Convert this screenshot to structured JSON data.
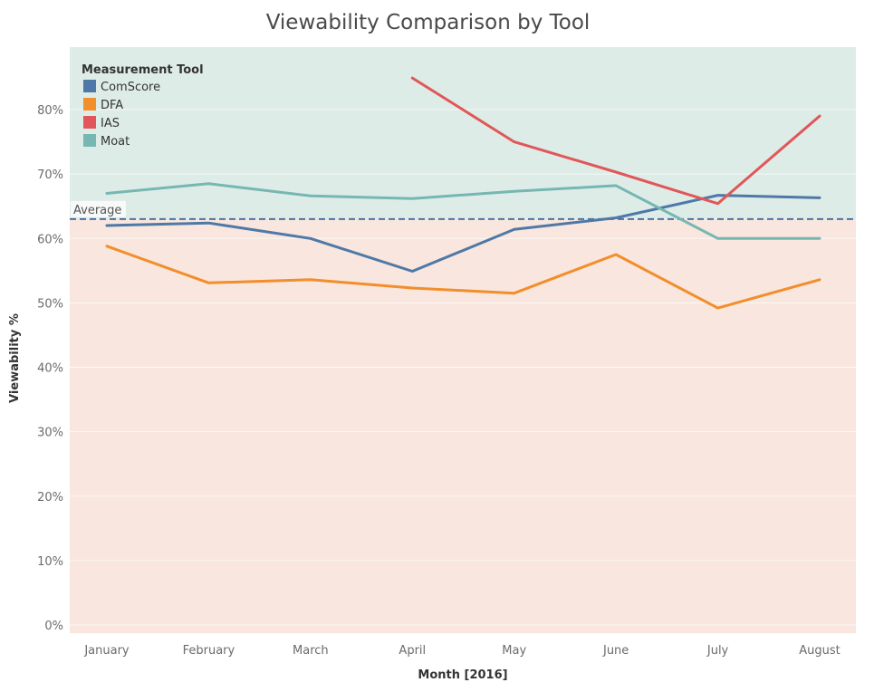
{
  "chart_data": {
    "type": "line",
    "title": "Viewability Comparison by Tool",
    "xlabel": "Month [2016]",
    "ylabel": "Viewability %",
    "categories": [
      "January",
      "February",
      "March",
      "April",
      "May",
      "June",
      "July",
      "August"
    ],
    "ylim": [
      0,
      88
    ],
    "yticks": [
      "0%",
      "10%",
      "20%",
      "30%",
      "40%",
      "50%",
      "60%",
      "70%",
      "80%"
    ],
    "legend_title": "Measurement Tool",
    "legend_position": "top-left",
    "series": [
      {
        "name": "ComScore",
        "color": "#4e79a7",
        "values": [
          62.0,
          62.4,
          60.0,
          54.9,
          61.4,
          63.2,
          66.7,
          66.3
        ]
      },
      {
        "name": "DFA",
        "color": "#f28e2b",
        "values": [
          58.8,
          53.1,
          53.6,
          52.3,
          51.5,
          57.5,
          49.2,
          53.6
        ]
      },
      {
        "name": "IAS",
        "color": "#e15759",
        "values": [
          null,
          null,
          null,
          84.9,
          75.0,
          70.3,
          65.4,
          79.0
        ]
      },
      {
        "name": "Moat",
        "color": "#76b7b2",
        "values": [
          67.0,
          68.5,
          66.6,
          66.2,
          67.3,
          68.2,
          60.0,
          60.0
        ]
      }
    ],
    "reference_line": {
      "label": "Average",
      "value": 63.0,
      "color": "#4e6fa0"
    },
    "bands": {
      "above_color": "#deece8",
      "below_color": "#f9e6de"
    },
    "grid": true
  }
}
